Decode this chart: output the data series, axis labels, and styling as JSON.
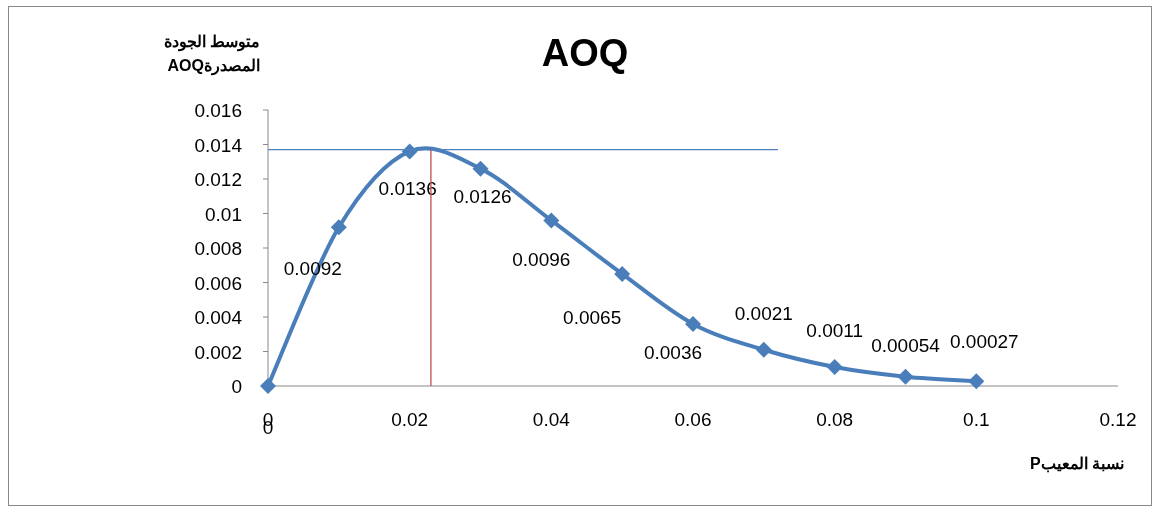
{
  "chart_data": {
    "type": "line",
    "title": "AOQ",
    "xlabel": "نسبة المعيبP",
    "ylabel": "متوسط الجودة المصدرةAOQ",
    "xlim": [
      0,
      0.12
    ],
    "xticks": [
      0,
      0.02,
      0.04,
      0.06,
      0.08,
      0.1,
      0.12
    ],
    "ylim": [
      0,
      0.016
    ],
    "yticks": [
      0,
      0.002,
      0.004,
      0.006,
      0.008,
      0.01,
      0.012,
      0.014,
      0.016
    ],
    "grid": false,
    "marker": "diamond",
    "line_style": "solid",
    "x": [
      0,
      0.01,
      0.02,
      0.03,
      0.04,
      0.05,
      0.06,
      0.07,
      0.08,
      0.09,
      0.1
    ],
    "series": [
      {
        "color": "#4a7ebb",
        "values": [
          0,
          0.0092,
          0.0136,
          0.0126,
          0.0096,
          0.0065,
          0.0036,
          0.0021,
          0.0011,
          0.00054,
          0.00027
        ],
        "value_labels": [
          "0",
          "0.0092",
          "0.0136",
          "0.0126",
          "0.0096",
          "0.0065",
          "0.0036",
          "0.0021",
          "0.0011",
          "0.00054",
          "0.00027"
        ]
      },
      {
        "color": "#4f81bd",
        "x": [
          0,
          0.072
        ],
        "values": [
          0.0137,
          0.0137
        ],
        "marker": "none"
      },
      {
        "color": "#c0504d",
        "x": [
          0.023,
          0.023
        ],
        "values": [
          0,
          0.0137
        ],
        "marker": "none"
      }
    ]
  }
}
